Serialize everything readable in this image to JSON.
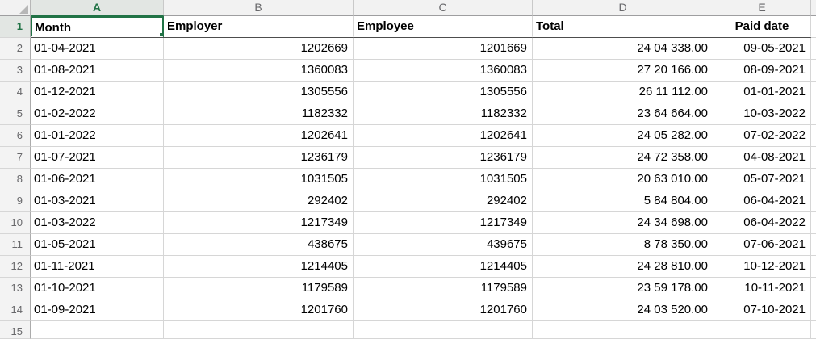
{
  "sheet": {
    "app": "spreadsheet",
    "selection": {
      "active_cell": "A1",
      "accent_color": "#217346"
    },
    "colors": {
      "grid_line": "#D6D6D6",
      "header_bg": "#F2F2F2",
      "selected_header_bg": "#E2E6E3",
      "header_strip_border": "#9E9EA0",
      "header_double_border": "#4D4D4D",
      "selection_green": "#217346"
    },
    "column_letters": [
      "A",
      "B",
      "C",
      "D",
      "E"
    ],
    "row_numbers": [
      "1",
      "2",
      "3",
      "4",
      "5",
      "6",
      "7",
      "8",
      "9",
      "10",
      "11",
      "12",
      "13",
      "14",
      "15"
    ],
    "header": {
      "month": "Month",
      "employer": "Employer",
      "employee": "Employee",
      "total": "Total",
      "paid_date": "Paid date"
    },
    "rows": [
      {
        "month": "01-04-2021",
        "employer": "1202669",
        "employee": "1201669",
        "total": "24 04 338.00",
        "paid_date": "09-05-2021"
      },
      {
        "month": "01-08-2021",
        "employer": "1360083",
        "employee": "1360083",
        "total": "27 20 166.00",
        "paid_date": "08-09-2021"
      },
      {
        "month": "01-12-2021",
        "employer": "1305556",
        "employee": "1305556",
        "total": "26 11 112.00",
        "paid_date": "01-01-2021"
      },
      {
        "month": "01-02-2022",
        "employer": "1182332",
        "employee": "1182332",
        "total": "23 64 664.00",
        "paid_date": "10-03-2022"
      },
      {
        "month": "01-01-2022",
        "employer": "1202641",
        "employee": "1202641",
        "total": "24 05 282.00",
        "paid_date": "07-02-2022"
      },
      {
        "month": "01-07-2021",
        "employer": "1236179",
        "employee": "1236179",
        "total": "24 72 358.00",
        "paid_date": "04-08-2021"
      },
      {
        "month": "01-06-2021",
        "employer": "1031505",
        "employee": "1031505",
        "total": "20 63 010.00",
        "paid_date": "05-07-2021"
      },
      {
        "month": "01-03-2021",
        "employer": "292402",
        "employee": "292402",
        "total": "5 84 804.00",
        "paid_date": "06-04-2021"
      },
      {
        "month": "01-03-2022",
        "employer": "1217349",
        "employee": "1217349",
        "total": "24 34 698.00",
        "paid_date": "06-04-2022"
      },
      {
        "month": "01-05-2021",
        "employer": "438675",
        "employee": "439675",
        "total": "8 78 350.00",
        "paid_date": "07-06-2021"
      },
      {
        "month": "01-11-2021",
        "employer": "1214405",
        "employee": "1214405",
        "total": "24 28 810.00",
        "paid_date": "10-12-2021"
      },
      {
        "month": "01-10-2021",
        "employer": "1179589",
        "employee": "1179589",
        "total": "23 59 178.00",
        "paid_date": "10-11-2021"
      },
      {
        "month": "01-09-2021",
        "employer": "1201760",
        "employee": "1201760",
        "total": "24 03 520.00",
        "paid_date": "07-10-2021"
      }
    ]
  }
}
